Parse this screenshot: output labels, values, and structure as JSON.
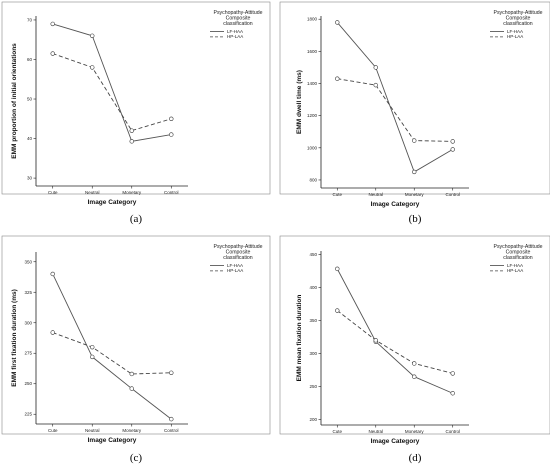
{
  "chart_data": [
    {
      "type": "line",
      "panel_label": "(a)",
      "xlabel": "Image Category",
      "ylabel": "EMM proportion of initial orientations",
      "categories": [
        "Cute",
        "Neutral",
        "Monetary",
        "Control"
      ],
      "ylim": [
        28,
        71
      ],
      "yticks": [
        30,
        40,
        50,
        60,
        70
      ],
      "legend_title": [
        "Psychopathy-Attitude",
        "Composite",
        "classification"
      ],
      "series": [
        {
          "name": "LF-HAA",
          "style": "solid",
          "values": [
            69,
            66,
            39.3,
            41
          ]
        },
        {
          "name": "HP-LAA",
          "style": "dashed",
          "values": [
            61.5,
            58,
            42,
            45
          ]
        }
      ]
    },
    {
      "type": "line",
      "panel_label": "(b)",
      "xlabel": "Image Category",
      "ylabel": "EMM dwell time (ms)",
      "categories": [
        "Cute",
        "Neutral",
        "Monetary",
        "Control"
      ],
      "ylim": [
        750,
        1820
      ],
      "yticks": [
        800,
        1000,
        1200,
        1400,
        1600,
        1800
      ],
      "legend_title": [
        "Psychopathy-Attitude",
        "Composite",
        "classification"
      ],
      "series": [
        {
          "name": "LF-HAA",
          "style": "solid",
          "values": [
            1780,
            1500,
            850,
            990
          ]
        },
        {
          "name": "HP-LAA",
          "style": "dashed",
          "values": [
            1430,
            1390,
            1045,
            1040
          ]
        }
      ]
    },
    {
      "type": "line",
      "panel_label": "(c)",
      "xlabel": "Image Category",
      "ylabel": "EMM first fixation duration (ms)",
      "categories": [
        "Cute",
        "Neutral",
        "Monetary",
        "Control"
      ],
      "ylim": [
        217,
        358
      ],
      "yticks": [
        225,
        250,
        275,
        300,
        325,
        350
      ],
      "legend_title": [
        "Psychopathy-Attitude",
        "Composite",
        "classification"
      ],
      "series": [
        {
          "name": "LF-HAA",
          "style": "solid",
          "values": [
            340,
            272,
            246,
            221
          ]
        },
        {
          "name": "HP-LAA",
          "style": "dashed",
          "values": [
            292,
            280,
            258,
            259
          ]
        }
      ]
    },
    {
      "type": "line",
      "panel_label": "(d)",
      "xlabel": "Image Category",
      "ylabel": "EMM mean fixation duration",
      "categories": [
        "Cute",
        "Neutral",
        "Monetary",
        "Control"
      ],
      "ylim": [
        192,
        455
      ],
      "yticks": [
        200,
        250,
        300,
        350,
        400,
        450
      ],
      "legend_title": [
        "Psychopathy-Attitude",
        "Composite",
        "classification"
      ],
      "series": [
        {
          "name": "LF-HAA",
          "style": "solid",
          "values": [
            428,
            318,
            265,
            240
          ]
        },
        {
          "name": "HP-LAA",
          "style": "dashed",
          "values": [
            365,
            320,
            285,
            270
          ]
        }
      ]
    }
  ]
}
